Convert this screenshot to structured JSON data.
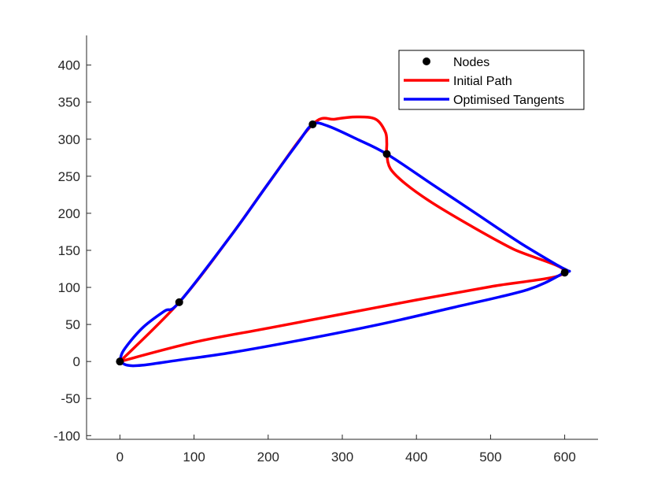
{
  "chart_data": {
    "type": "line",
    "title": "",
    "xlabel": "",
    "ylabel": "",
    "xlim": [
      -45,
      645
    ],
    "ylim": [
      -105,
      440
    ],
    "xticks": [
      0,
      100,
      200,
      300,
      400,
      500,
      600
    ],
    "yticks": [
      -100,
      -50,
      0,
      50,
      100,
      150,
      200,
      250,
      300,
      350,
      400
    ],
    "grid": false,
    "legend_position": "top-right",
    "nodes": {
      "name": "Nodes",
      "color": "#000000",
      "x": [
        0,
        80,
        260,
        360,
        600
      ],
      "y": [
        0,
        80,
        320,
        280,
        120
      ]
    },
    "series": [
      {
        "name": "Initial Path",
        "color": "#ff0000",
        "x": [
          0,
          80,
          150,
          200,
          260,
          290,
          320,
          345,
          358,
          360,
          360,
          365,
          385,
          420,
          470,
          530,
          600,
          500,
          400,
          300,
          200,
          100,
          0
        ],
        "y": [
          0,
          80,
          170,
          240,
          320,
          327,
          330,
          327,
          310,
          295,
          280,
          260,
          240,
          215,
          185,
          152,
          120,
          101,
          83,
          64,
          45,
          26,
          0
        ]
      },
      {
        "name": "Optimised Tangents",
        "color": "#0000ff",
        "x": [
          0,
          5,
          30,
          60,
          80,
          150,
          200,
          240,
          260,
          280,
          320,
          360,
          420,
          480,
          540,
          590,
          605,
          600,
          550,
          450,
          350,
          250,
          150,
          80,
          30,
          10,
          0
        ],
        "y": [
          0,
          15,
          45,
          68,
          80,
          170,
          240,
          295,
          320,
          318,
          300,
          280,
          240,
          200,
          160,
          130,
          122,
          120,
          97,
          73,
          50,
          30,
          12,
          2,
          -5,
          -5,
          0
        ]
      }
    ]
  }
}
